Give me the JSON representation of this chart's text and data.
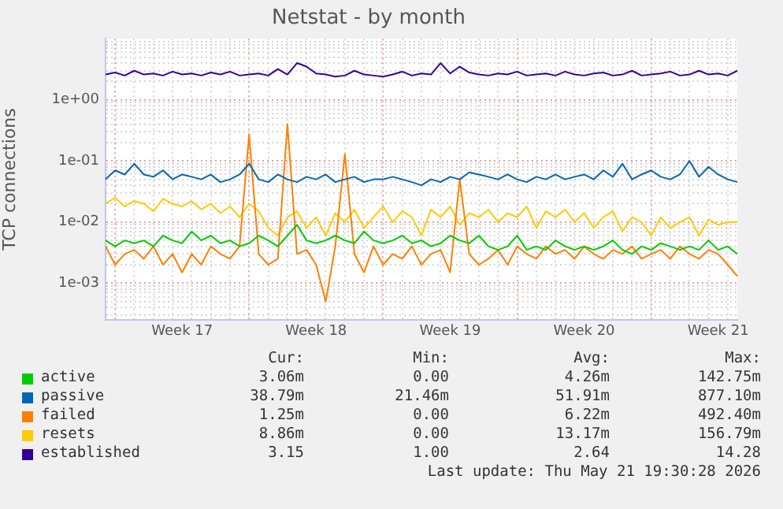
{
  "chart_data": {
    "type": "line",
    "title": "Netstat - by month",
    "ylabel": "TCP connections",
    "log": "y",
    "grid": true,
    "legend": "bottom",
    "marker": "none",
    "line_style": "solid",
    "categories": [
      null,
      null,
      null,
      null,
      null,
      null,
      null,
      null,
      "Week 17",
      null,
      null,
      null,
      null,
      null,
      null,
      null,
      null,
      null,
      null,
      null,
      null,
      null,
      "Week 18",
      null,
      null,
      null,
      null,
      null,
      null,
      null,
      null,
      null,
      null,
      null,
      null,
      null,
      "Week 19",
      null,
      null,
      null,
      null,
      null,
      null,
      null,
      null,
      null,
      null,
      null,
      null,
      null,
      "Week 20",
      null,
      null,
      null,
      null,
      null,
      null,
      null,
      null,
      null,
      null,
      null,
      null,
      null,
      "Week 21",
      null,
      null
    ],
    "ylim": [
      0.00025,
      10
    ],
    "yticks": [
      {
        "value": 0.0003,
        "label": null
      },
      {
        "value": 0.0004,
        "label": null
      },
      {
        "value": 0.0005,
        "label": null
      },
      {
        "value": 0.0006,
        "label": null
      },
      {
        "value": 0.0007,
        "label": null
      },
      {
        "value": 0.0008,
        "label": null
      },
      {
        "value": 0.0009,
        "label": null
      },
      {
        "value": 0.001,
        "label": "1e-03"
      },
      {
        "value": 0.002,
        "label": null
      },
      {
        "value": 0.003,
        "label": null
      },
      {
        "value": 0.004,
        "label": null
      },
      {
        "value": 0.005,
        "label": null
      },
      {
        "value": 0.006,
        "label": null
      },
      {
        "value": 0.007,
        "label": null
      },
      {
        "value": 0.008,
        "label": null
      },
      {
        "value": 0.009,
        "label": null
      },
      {
        "value": 0.01,
        "label": "1e-02"
      },
      {
        "value": 0.02,
        "label": null
      },
      {
        "value": 0.03,
        "label": null
      },
      {
        "value": 0.04,
        "label": null
      },
      {
        "value": 0.05,
        "label": null
      },
      {
        "value": 0.06,
        "label": null
      },
      {
        "value": 0.07,
        "label": null
      },
      {
        "value": 0.08,
        "label": null
      },
      {
        "value": 0.09,
        "label": null
      },
      {
        "value": 0.1,
        "label": "1e-01"
      },
      {
        "value": 0.2,
        "label": null
      },
      {
        "value": 0.3,
        "label": null
      },
      {
        "value": 0.4,
        "label": null
      },
      {
        "value": 0.5,
        "label": null
      },
      {
        "value": 0.6,
        "label": null
      },
      {
        "value": 0.7,
        "label": null
      },
      {
        "value": 0.8,
        "label": null
      },
      {
        "value": 0.9,
        "label": null
      },
      {
        "value": 1,
        "label": "1e+00"
      },
      {
        "value": 2,
        "label": null
      },
      {
        "value": 3,
        "label": null
      },
      {
        "value": 4,
        "label": null
      },
      {
        "value": 5,
        "label": null
      },
      {
        "value": 6,
        "label": null
      },
      {
        "value": 7,
        "label": null
      },
      {
        "value": 8,
        "label": null
      },
      {
        "value": 9,
        "label": null
      }
    ],
    "series": [
      {
        "name": "active",
        "color": "#00cc00",
        "values": [
          0.005,
          0.004,
          0.005,
          0.0045,
          0.005,
          0.004,
          0.006,
          0.005,
          0.0045,
          0.007,
          0.005,
          0.006,
          0.0045,
          0.005,
          0.004,
          0.0045,
          0.006,
          0.005,
          0.004,
          0.006,
          0.009,
          0.005,
          0.0045,
          0.005,
          0.006,
          0.005,
          0.0045,
          0.007,
          0.005,
          0.0045,
          0.005,
          0.006,
          0.0045,
          0.005,
          0.004,
          0.0045,
          0.006,
          0.005,
          0.0045,
          0.006,
          0.004,
          0.0035,
          0.004,
          0.006,
          0.0035,
          0.004,
          0.0035,
          0.005,
          0.004,
          0.0035,
          0.004,
          0.0035,
          0.004,
          0.005,
          0.0035,
          0.003,
          0.004,
          0.0035,
          0.0045,
          0.004,
          0.0035,
          0.004,
          0.0035,
          0.005,
          0.0035,
          0.004,
          0.003
        ]
      },
      {
        "name": "passive",
        "color": "#0066b3",
        "values": [
          0.05,
          0.07,
          0.06,
          0.09,
          0.06,
          0.055,
          0.07,
          0.05,
          0.06,
          0.055,
          0.05,
          0.06,
          0.045,
          0.05,
          0.06,
          0.09,
          0.05,
          0.045,
          0.06,
          0.05,
          0.045,
          0.055,
          0.05,
          0.06,
          0.045,
          0.05,
          0.055,
          0.045,
          0.05,
          0.05,
          0.055,
          0.05,
          0.045,
          0.04,
          0.05,
          0.045,
          0.055,
          0.05,
          0.065,
          0.06,
          0.055,
          0.05,
          0.06,
          0.05,
          0.045,
          0.055,
          0.05,
          0.06,
          0.05,
          0.055,
          0.06,
          0.05,
          0.07,
          0.055,
          0.09,
          0.05,
          0.06,
          0.07,
          0.055,
          0.05,
          0.06,
          0.1,
          0.055,
          0.08,
          0.06,
          0.05,
          0.045
        ]
      },
      {
        "name": "failed",
        "color": "#ff8000",
        "values": [
          0.004,
          0.002,
          0.003,
          0.0035,
          0.0025,
          0.004,
          0.002,
          0.003,
          0.0015,
          0.003,
          0.002,
          0.004,
          0.003,
          0.0025,
          0.004,
          0.27,
          0.003,
          0.002,
          0.0025,
          0.4,
          0.003,
          0.0035,
          0.002,
          0.0005,
          0.004,
          0.13,
          0.003,
          0.0015,
          0.004,
          0.002,
          0.003,
          0.0025,
          0.004,
          0.002,
          0.003,
          0.0035,
          0.0015,
          0.05,
          0.003,
          0.002,
          0.0025,
          0.0035,
          0.002,
          0.004,
          0.003,
          0.0025,
          0.004,
          0.003,
          0.0035,
          0.0025,
          0.004,
          0.003,
          0.0025,
          0.0035,
          0.003,
          0.004,
          0.0025,
          0.003,
          0.0035,
          0.0025,
          0.004,
          0.003,
          0.0025,
          0.0035,
          0.003,
          0.002,
          0.0013
        ]
      },
      {
        "name": "resets",
        "color": "#ffcc00",
        "values": [
          0.02,
          0.025,
          0.018,
          0.022,
          0.02,
          0.015,
          0.024,
          0.02,
          0.018,
          0.022,
          0.016,
          0.02,
          0.014,
          0.018,
          0.012,
          0.02,
          0.015,
          0.008,
          0.006,
          0.012,
          0.015,
          0.008,
          0.012,
          0.006,
          0.014,
          0.01,
          0.016,
          0.008,
          0.012,
          0.018,
          0.01,
          0.015,
          0.012,
          0.006,
          0.016,
          0.012,
          0.018,
          0.009,
          0.014,
          0.012,
          0.016,
          0.01,
          0.014,
          0.012,
          0.018,
          0.008,
          0.015,
          0.012,
          0.016,
          0.01,
          0.014,
          0.008,
          0.012,
          0.015,
          0.007,
          0.012,
          0.01,
          0.006,
          0.012,
          0.008,
          0.01,
          0.012,
          0.006,
          0.011,
          0.009,
          0.01,
          0.01
        ]
      },
      {
        "name": "established",
        "color": "#330099",
        "values": [
          2.6,
          2.8,
          2.5,
          3.0,
          2.6,
          2.7,
          2.5,
          2.9,
          2.6,
          2.7,
          2.5,
          2.8,
          2.6,
          2.9,
          2.5,
          2.6,
          2.7,
          2.5,
          3.2,
          2.6,
          4.0,
          3.5,
          2.7,
          2.6,
          2.4,
          2.5,
          3.0,
          2.6,
          2.5,
          2.4,
          2.6,
          2.9,
          2.5,
          2.7,
          2.6,
          4.0,
          2.7,
          3.5,
          2.8,
          2.6,
          2.5,
          2.7,
          2.6,
          2.9,
          2.5,
          2.6,
          2.7,
          2.5,
          2.9,
          2.6,
          2.5,
          2.7,
          2.8,
          2.5,
          2.6,
          3.0,
          2.5,
          2.6,
          2.7,
          2.9,
          2.5,
          2.6,
          3.0,
          2.6,
          2.7,
          2.5,
          3.0
        ]
      }
    ],
    "annotations": [
      "Cur:",
      "Min:",
      "Avg:",
      "Max:",
      "3.06m",
      "0.00",
      "4.26m",
      "142.75m",
      "38.79m",
      "21.46m",
      "51.91m",
      "877.10m",
      "1.25m",
      "0.00",
      "6.22m",
      "492.40m",
      "8.86m",
      "0.00",
      "13.17m",
      "156.79m",
      "3.15",
      "1.00",
      "2.64",
      "14.28",
      "Last update: Thu May 21 19:30:28 2026"
    ]
  }
}
